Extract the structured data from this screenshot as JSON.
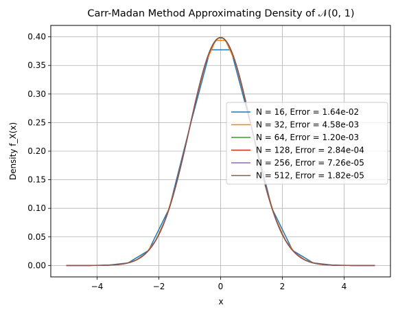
{
  "chart_data": {
    "type": "line",
    "title": "Carr-Madan Method Approximating Density of 𝒩(0, 1)",
    "xlabel": "x",
    "ylabel": "Density f_X(x)",
    "xlim": [
      -5.5,
      5.5
    ],
    "ylim": [
      -0.02,
      0.42
    ],
    "x_ticks": [
      -4,
      -2,
      0,
      2,
      4
    ],
    "x_tick_labels": [
      "−4",
      "−2",
      "0",
      "2",
      "4"
    ],
    "y_ticks": [
      0.0,
      0.05,
      0.1,
      0.15,
      0.2,
      0.25,
      0.3,
      0.35,
      0.4
    ],
    "y_tick_labels": [
      "0.00",
      "0.05",
      "0.10",
      "0.15",
      "0.20",
      "0.25",
      "0.30",
      "0.35",
      "0.40"
    ],
    "grid": true,
    "legend_position": "center-right",
    "series": [
      {
        "name": "N = 16, Error = 1.64e-02",
        "color": "#1f77b4",
        "n_points": 16
      },
      {
        "name": "N = 32, Error = 4.58e-03",
        "color": "#ff7f0e",
        "n_points": 32
      },
      {
        "name": "N = 64, Error = 1.20e-03",
        "color": "#2ca02c",
        "n_points": 64
      },
      {
        "name": "N = 128, Error = 2.84e-04",
        "color": "#d62728",
        "n_points": 128
      },
      {
        "name": "N = 256, Error = 7.26e-05",
        "color": "#9467bd",
        "n_points": 256
      },
      {
        "name": "N = 512, Error = 1.82e-05",
        "color": "#8c564b",
        "n_points": 512
      }
    ],
    "x_range": [
      -5,
      5
    ]
  }
}
